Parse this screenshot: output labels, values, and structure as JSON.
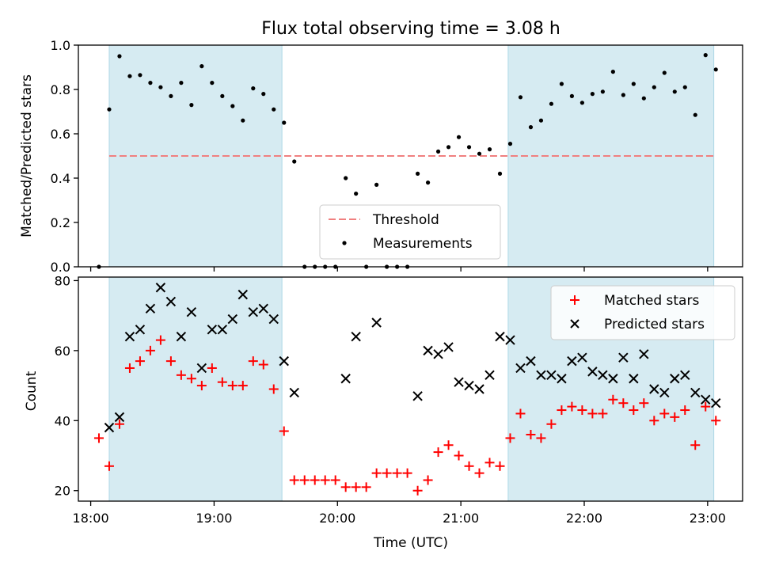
{
  "chart_data": [
    {
      "type": "scatter",
      "title": "Flux total observing time = 3.08 h",
      "ylabel": "Matched/Predicted stars",
      "xlabel": "",
      "xlim": [
        "17:54",
        "23:17"
      ],
      "ylim": [
        0,
        1.0
      ],
      "yticks": [
        0.0,
        0.2,
        0.4,
        0.6,
        0.8,
        1.0
      ],
      "ytick_labels": [
        "0.0",
        "0.2",
        "0.4",
        "0.6",
        "0.8",
        "1.0"
      ],
      "shaded_intervals": [
        [
          "18:09",
          "19:33"
        ],
        [
          "21:23",
          "23:03"
        ]
      ],
      "threshold": {
        "name": "Threshold",
        "value": 0.5,
        "from": "18:09",
        "to": "23:03",
        "color": "#f08080"
      },
      "series": [
        {
          "name": "Measurements",
          "marker": "dot",
          "color": "#000000",
          "x": [
            "18:04",
            "18:09",
            "18:14",
            "18:19",
            "18:24",
            "18:29",
            "18:34",
            "18:39",
            "18:44",
            "18:49",
            "18:54",
            "18:59",
            "19:04",
            "19:09",
            "19:14",
            "19:19",
            "19:24",
            "19:29",
            "19:34",
            "19:39",
            "19:44",
            "19:49",
            "19:54",
            "19:59",
            "20:04",
            "20:09",
            "20:14",
            "20:19",
            "20:24",
            "20:29",
            "20:34",
            "20:39",
            "20:44",
            "20:49",
            "20:54",
            "20:59",
            "21:04",
            "21:09",
            "21:14",
            "21:19",
            "21:24",
            "21:29",
            "21:34",
            "21:39",
            "21:44",
            "21:49",
            "21:54",
            "21:59",
            "22:04",
            "22:09",
            "22:14",
            "22:19",
            "22:24",
            "22:29",
            "22:34",
            "22:39",
            "22:44",
            "22:49",
            "22:54",
            "22:59",
            "23:04"
          ],
          "y": [
            0.0,
            0.71,
            0.95,
            0.86,
            0.865,
            0.83,
            0.81,
            0.77,
            0.83,
            0.73,
            0.905,
            0.83,
            0.77,
            0.725,
            0.66,
            0.805,
            0.78,
            0.71,
            0.65,
            0.475,
            0.0,
            0.0,
            0.0,
            0.0,
            0.4,
            0.33,
            0.0,
            0.37,
            0.0,
            0.0,
            0.0,
            0.42,
            0.38,
            0.52,
            0.54,
            0.585,
            0.54,
            0.51,
            0.53,
            0.42,
            0.555,
            0.765,
            0.63,
            0.66,
            0.735,
            0.825,
            0.77,
            0.74,
            0.78,
            0.79,
            0.88,
            0.775,
            0.825,
            0.76,
            0.81,
            0.875,
            0.79,
            0.81,
            0.685,
            0.955,
            0.89
          ]
        }
      ],
      "legend": {
        "position": "lower-center",
        "entries": [
          "Threshold",
          "Measurements"
        ]
      }
    },
    {
      "type": "scatter",
      "title": "",
      "ylabel": "Count",
      "xlabel": "Time (UTC)",
      "xlim": [
        "17:54",
        "23:17"
      ],
      "ylim": [
        17,
        81
      ],
      "yticks": [
        20,
        40,
        60,
        80
      ],
      "ytick_labels": [
        "20",
        "40",
        "60",
        "80"
      ],
      "xticks": [
        "18:00",
        "19:00",
        "20:00",
        "21:00",
        "22:00",
        "23:00"
      ],
      "xtick_labels": [
        "18:00",
        "19:00",
        "20:00",
        "21:00",
        "22:00",
        "23:00"
      ],
      "shaded_intervals": [
        [
          "18:09",
          "19:33"
        ],
        [
          "21:23",
          "23:03"
        ]
      ],
      "series": [
        {
          "name": "Matched stars",
          "marker": "plus",
          "color": "#ff0000",
          "x": [
            "18:04",
            "18:09",
            "18:14",
            "18:19",
            "18:24",
            "18:29",
            "18:34",
            "18:39",
            "18:44",
            "18:49",
            "18:54",
            "18:59",
            "19:04",
            "19:09",
            "19:14",
            "19:19",
            "19:24",
            "19:29",
            "19:34",
            "19:39",
            "19:44",
            "19:49",
            "19:54",
            "19:59",
            "20:04",
            "20:09",
            "20:14",
            "20:19",
            "20:24",
            "20:29",
            "20:34",
            "20:39",
            "20:44",
            "20:49",
            "20:54",
            "20:59",
            "21:04",
            "21:09",
            "21:14",
            "21:19",
            "21:24",
            "21:29",
            "21:34",
            "21:39",
            "21:44",
            "21:49",
            "21:54",
            "21:59",
            "22:04",
            "22:09",
            "22:14",
            "22:19",
            "22:24",
            "22:29",
            "22:34",
            "22:39",
            "22:44",
            "22:49",
            "22:54",
            "22:59",
            "23:04"
          ],
          "y": [
            35,
            27,
            39,
            55,
            57,
            60,
            63,
            57,
            53,
            52,
            50,
            55,
            51,
            50,
            50,
            57,
            56,
            49,
            37,
            23,
            23,
            23,
            23,
            23,
            21,
            21,
            21,
            25,
            25,
            25,
            25,
            20,
            23,
            31,
            33,
            30,
            27,
            25,
            28,
            27,
            35,
            42,
            36,
            35,
            39,
            43,
            44,
            43,
            42,
            42,
            46,
            45,
            43,
            45,
            40,
            42,
            41,
            43,
            33,
            44,
            40
          ]
        },
        {
          "name": "Predicted stars",
          "marker": "x",
          "color": "#000000",
          "x": [
            "18:09",
            "18:14",
            "18:19",
            "18:24",
            "18:29",
            "18:34",
            "18:39",
            "18:44",
            "18:49",
            "18:54",
            "18:59",
            "19:04",
            "19:09",
            "19:14",
            "19:19",
            "19:24",
            "19:29",
            "19:34",
            "19:39",
            "20:04",
            "20:09",
            "20:19",
            "20:39",
            "20:44",
            "20:49",
            "20:54",
            "20:59",
            "21:04",
            "21:09",
            "21:14",
            "21:19",
            "21:24",
            "21:29",
            "21:34",
            "21:39",
            "21:44",
            "21:49",
            "21:54",
            "21:59",
            "22:04",
            "22:09",
            "22:14",
            "22:19",
            "22:24",
            "22:29",
            "22:34",
            "22:39",
            "22:44",
            "22:49",
            "22:54",
            "22:59",
            "23:04"
          ],
          "y": [
            38,
            41,
            64,
            66,
            72,
            78,
            74,
            64,
            71,
            55,
            66,
            66,
            69,
            76,
            71,
            72,
            69,
            57,
            48,
            52,
            64,
            68,
            47,
            60,
            59,
            61,
            51,
            50,
            49,
            53,
            64,
            63,
            55,
            57,
            53,
            53,
            52,
            57,
            58,
            54,
            53,
            52,
            58,
            52,
            59,
            49,
            48,
            52,
            53,
            48,
            46,
            45
          ]
        }
      ],
      "legend": {
        "position": "upper-right",
        "entries": [
          "Matched stars",
          "Predicted stars"
        ]
      }
    }
  ]
}
